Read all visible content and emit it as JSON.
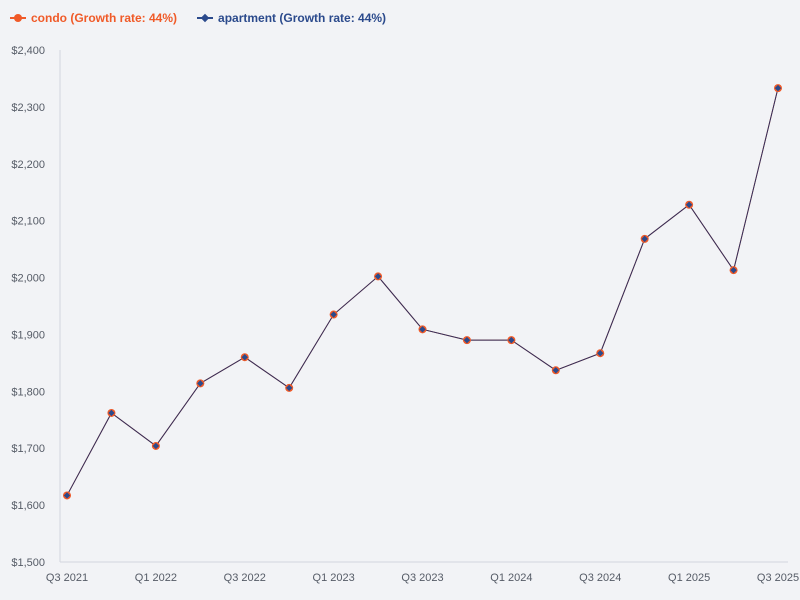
{
  "legend": {
    "condo_label": "condo (Growth rate: 44%)",
    "apartment_label": "apartment (Growth rate: 44%)"
  },
  "colors": {
    "condo": "#f05a28",
    "apartment": "#2b4a8c",
    "line": "#2f2f5e",
    "axis": "#d3d6de",
    "background": "#f2f3f6"
  },
  "chart_data": {
    "type": "line",
    "title": "",
    "xlabel": "",
    "ylabel": "",
    "ylim": [
      1500,
      2400
    ],
    "yticks": [
      1500,
      1600,
      1700,
      1800,
      1900,
      2000,
      2100,
      2200,
      2300,
      2400
    ],
    "ytick_labels": [
      "$1,500",
      "$1,600",
      "$1,700",
      "$1,800",
      "$1,900",
      "$2,000",
      "$2,100",
      "$2,200",
      "$2,300",
      "$2,400"
    ],
    "x": [
      "Q3 2021",
      "Q4 2021",
      "Q1 2022",
      "Q2 2022",
      "Q3 2022",
      "Q4 2022",
      "Q1 2023",
      "Q2 2023",
      "Q3 2023",
      "Q4 2023",
      "Q1 2024",
      "Q2 2024",
      "Q3 2024",
      "Q4 2024",
      "Q1 2025",
      "Q2 2025",
      "Q3 2025"
    ],
    "xtick_labels": [
      "Q3 2021",
      "Q1 2022",
      "Q3 2022",
      "Q1 2023",
      "Q3 2023",
      "Q1 2024",
      "Q3 2024",
      "Q1 2025",
      "Q3 2025"
    ],
    "series": [
      {
        "name": "condo (Growth rate: 44%)",
        "values": [
          1617,
          1762,
          1704,
          1814,
          1860,
          1806,
          1935,
          2002,
          1909,
          1890,
          1890,
          1837,
          1867,
          2068,
          2128,
          2013,
          2333
        ]
      },
      {
        "name": "apartment (Growth rate: 44%)",
        "values": [
          1617,
          1762,
          1704,
          1814,
          1860,
          1806,
          1935,
          2002,
          1909,
          1890,
          1890,
          1837,
          1867,
          2068,
          2128,
          2013,
          2333
        ]
      }
    ],
    "grid": false,
    "legend_position": "top-left"
  }
}
